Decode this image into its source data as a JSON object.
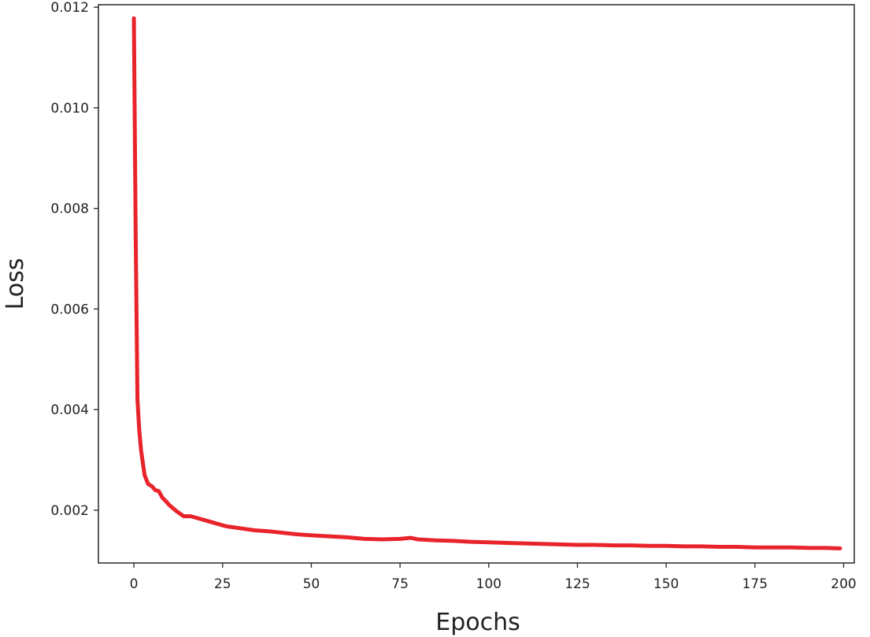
{
  "chart_data": {
    "type": "line",
    "title": "",
    "xlabel": "Epochs",
    "ylabel": "Loss",
    "xlim": [
      -10,
      203
    ],
    "ylim": [
      0.00095,
      0.01205
    ],
    "xticks": [
      0,
      25,
      50,
      75,
      100,
      125,
      150,
      175,
      200
    ],
    "yticks": [
      0.002,
      0.004,
      0.006,
      0.008,
      0.01,
      0.012
    ],
    "xtick_labels": [
      "0",
      "25",
      "50",
      "75",
      "100",
      "125",
      "150",
      "175",
      "200"
    ],
    "ytick_labels": [
      "0.002",
      "0.004",
      "0.006",
      "0.008",
      "0.010",
      "0.012"
    ],
    "grid": false,
    "series": [
      {
        "color": "#e8242a",
        "x": [
          0,
          0.5,
          1,
          1.5,
          2,
          2.5,
          3,
          4,
          5,
          6,
          7,
          8,
          9,
          10,
          12,
          14,
          16,
          18,
          20,
          23,
          26,
          30,
          34,
          38,
          42,
          46,
          50,
          55,
          60,
          65,
          70,
          75,
          78,
          80,
          85,
          90,
          95,
          100,
          105,
          110,
          115,
          120,
          125,
          130,
          135,
          140,
          145,
          150,
          155,
          160,
          165,
          170,
          175,
          180,
          185,
          190,
          195,
          199
        ],
        "values": [
          0.01178,
          0.0075,
          0.0042,
          0.0036,
          0.0032,
          0.00295,
          0.0027,
          0.00252,
          0.00248,
          0.0024,
          0.00238,
          0.00225,
          0.00218,
          0.0021,
          0.00198,
          0.00188,
          0.00188,
          0.00184,
          0.0018,
          0.00174,
          0.00168,
          0.00164,
          0.0016,
          0.00158,
          0.00155,
          0.00152,
          0.0015,
          0.00148,
          0.00146,
          0.00143,
          0.00142,
          0.00143,
          0.00145,
          0.00142,
          0.0014,
          0.00139,
          0.00137,
          0.00136,
          0.00135,
          0.00134,
          0.00133,
          0.00132,
          0.00131,
          0.00131,
          0.0013,
          0.0013,
          0.00129,
          0.00129,
          0.00128,
          0.00128,
          0.00127,
          0.00127,
          0.00126,
          0.00126,
          0.00126,
          0.00125,
          0.00125,
          0.00124
        ]
      }
    ]
  }
}
